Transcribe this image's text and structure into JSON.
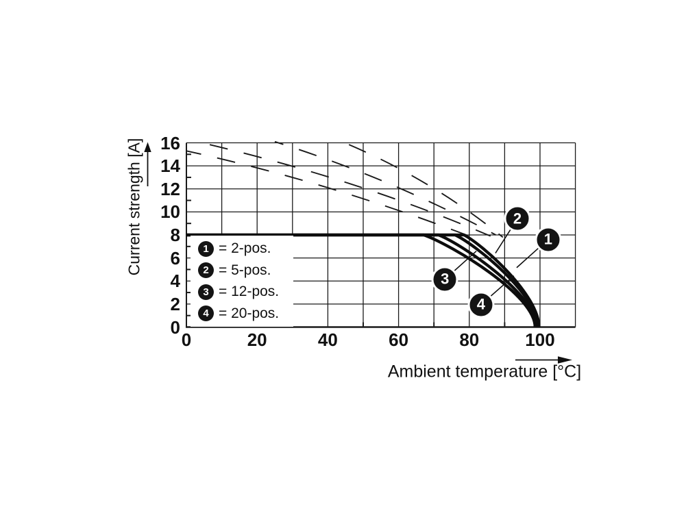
{
  "chart_data": {
    "type": "line",
    "title": "",
    "xlabel": "Ambient temperature [°C]",
    "ylabel": "Current strength [A]",
    "xlim": [
      0,
      110
    ],
    "ylim": [
      0,
      16
    ],
    "x_tick_labels": [
      0,
      20,
      40,
      60,
      80,
      100
    ],
    "y_tick_labels": [
      16,
      14,
      12,
      10,
      8,
      6,
      4,
      2,
      0
    ],
    "x_grid_step": 10,
    "y_grid_step": 2,
    "x_minor_ticks": [
      10,
      30,
      50,
      70,
      90
    ],
    "y_minor_ticks": [
      1,
      3,
      5,
      7,
      9,
      11,
      13,
      15
    ],
    "grid": "on",
    "legend_position": "lower-left",
    "current_limit_A": 8,
    "series": [
      {
        "badge": "1",
        "name": "2-pos.",
        "flat_current_A": 8,
        "derate_start_C": 78.5,
        "zero_current_C": 99.7
      },
      {
        "badge": "2",
        "name": "5-pos.",
        "flat_current_A": 8,
        "derate_start_C": 76.0,
        "zero_current_C": 99.4
      },
      {
        "badge": "3",
        "name": "12-pos.",
        "flat_current_A": 8,
        "derate_start_C": 71.3,
        "zero_current_C": 99.0
      },
      {
        "badge": "4",
        "name": "20-pos.",
        "flat_current_A": 8,
        "derate_start_C": 67.1,
        "zero_current_C": 98.6
      }
    ],
    "dashed_guides": [
      {
        "from": [
          0,
          15.3
        ],
        "via": [
          40,
          12.6
        ],
        "to": [
          80,
          7.9
        ],
        "phase": 5
      },
      {
        "from": [
          3,
          16.1
        ],
        "via": [
          48,
          12.9
        ],
        "to": [
          86,
          7.9
        ],
        "phase": 32
      },
      {
        "from": [
          25,
          16.1
        ],
        "via": [
          58,
          12.9
        ],
        "to": [
          87.5,
          8.0
        ],
        "phase": 14
      },
      {
        "from": [
          44,
          16.1
        ],
        "via": [
          69,
          12.9
        ],
        "to": [
          89.5,
          7.8
        ],
        "phase": 40
      }
    ],
    "legend": [
      {
        "symbol": "1",
        "label": "= 2-pos."
      },
      {
        "symbol": "2",
        "label": "= 5-pos."
      },
      {
        "symbol": "3",
        "label": "= 12-pos."
      },
      {
        "symbol": "4",
        "label": "= 20-pos."
      }
    ],
    "annotations": [
      {
        "label": "1",
        "at_C": 102.3,
        "at_A": 7.61,
        "target_C": 93.4,
        "target_A": 5.16
      },
      {
        "label": "2",
        "at_C": 93.6,
        "at_A": 9.4,
        "target_C": 87.4,
        "target_A": 6.42
      },
      {
        "label": "3",
        "at_C": 73.1,
        "at_A": 4.15,
        "target_C": 82.0,
        "target_A": 6.6
      },
      {
        "label": "4",
        "at_C": 83.3,
        "at_A": 1.94,
        "target_C": 92.6,
        "target_A": 4.45
      }
    ]
  }
}
